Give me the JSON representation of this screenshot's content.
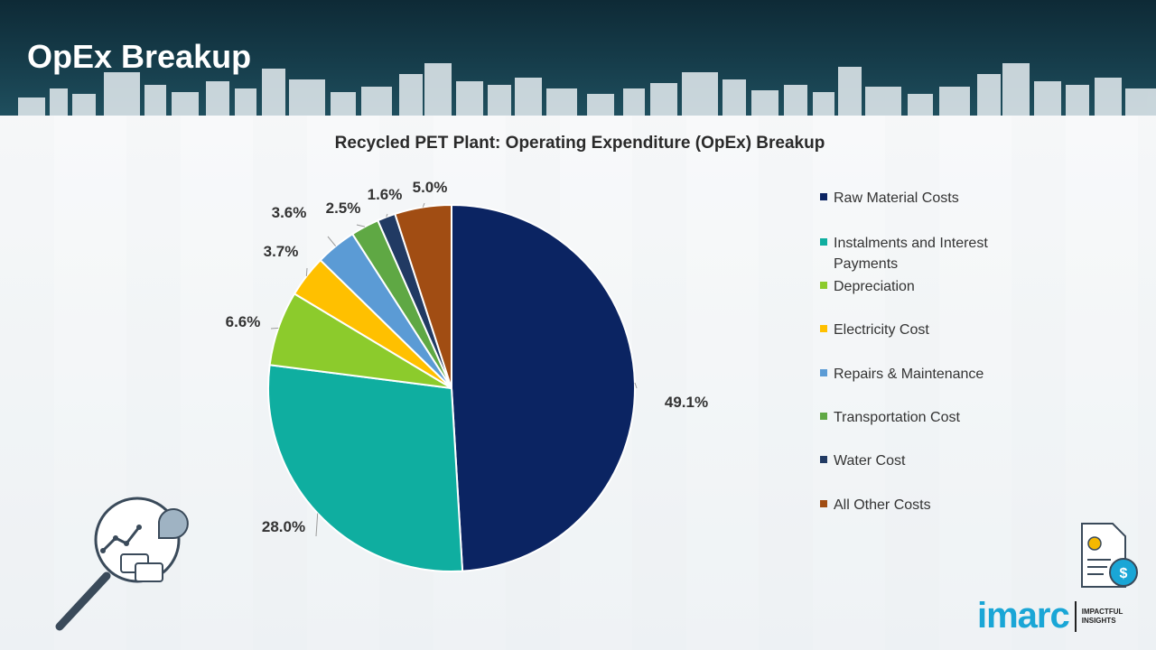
{
  "header": {
    "title": "OpEx Breakup"
  },
  "chart_data": {
    "type": "pie",
    "title": "Recycled PET Plant: Operating Expenditure (OpEx) Breakup",
    "categories": [
      "Raw Material Costs",
      "Instalments and Interest Payments",
      "Depreciation",
      "Electricity Cost",
      "Repairs & Maintenance",
      "Transportation Cost",
      "Water Cost",
      "All Other Costs"
    ],
    "values": [
      49.1,
      28.0,
      6.6,
      3.7,
      3.6,
      2.5,
      1.6,
      5.0
    ],
    "labels": [
      "49.1%",
      "28.0%",
      "6.6%",
      "3.7%",
      "3.6%",
      "2.5%",
      "1.6%",
      "5.0%"
    ],
    "colors": [
      "#0b2462",
      "#0faea0",
      "#8ccb2c",
      "#ffc000",
      "#5b9bd5",
      "#5fa844",
      "#213a63",
      "#a14d13"
    ],
    "legend_position": "right"
  },
  "logo": {
    "name": "imarc",
    "tagline_1": "IMPACTFUL",
    "tagline_2": "INSIGHTS"
  },
  "icons": {
    "left": "magnifier-chart-icon",
    "right": "cost-document-icon"
  }
}
